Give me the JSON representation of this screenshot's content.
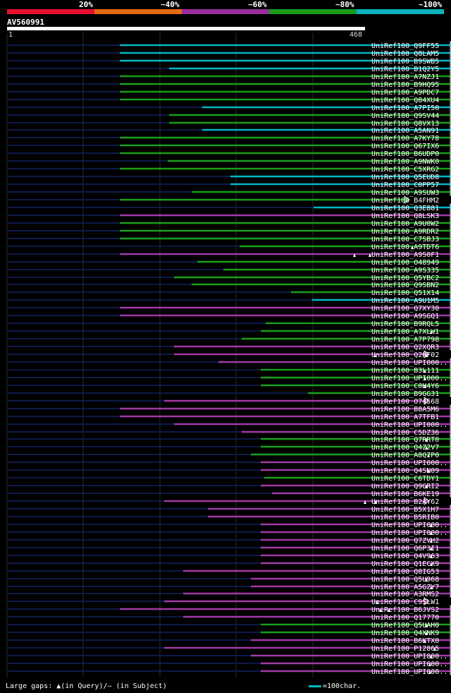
{
  "legend": {
    "colors": [
      "#e8102f",
      "#e46a12",
      "#9a2d9c",
      "#189c1a",
      "#0ab3bd"
    ],
    "labels": [
      "20%",
      "~40%",
      "~60%",
      "~80%",
      "~100%"
    ]
  },
  "query": {
    "name": "AV560991",
    "start": "1",
    "end": "468",
    "length": 468
  },
  "footer": {
    "gaps_text": "Large gaps: ▲(in Query)/— (in Subject)",
    "scale_text": "=100char."
  },
  "chart_data": {
    "type": "alignment-overview",
    "color_key": {
      "c": "#00b7c4",
      "g": "#1a9e1a",
      "m": "#a13aa6"
    },
    "hits": [
      {
        "name": "UniRef100_Q9FF55",
        "start": 170,
        "end": 645,
        "color": "c",
        "query_gaps": []
      },
      {
        "name": "UniRef100_Q8LAM5",
        "start": 170,
        "end": 645,
        "color": "c",
        "query_gaps": []
      },
      {
        "name": "UniRef100_B9SWB5",
        "start": 170,
        "end": 645,
        "color": "c",
        "query_gaps": []
      },
      {
        "name": "UniRef100_B1Q2Y5",
        "start": 240,
        "end": 645,
        "color": "c",
        "query_gaps": []
      },
      {
        "name": "UniRef100_A7NZJ1",
        "start": 170,
        "end": 645,
        "color": "g",
        "query_gaps": []
      },
      {
        "name": "UniRef100_B9HQ95",
        "start": 170,
        "end": 645,
        "color": "g",
        "query_gaps": []
      },
      {
        "name": "UniRef100_A9PDC7",
        "start": 170,
        "end": 645,
        "color": "g",
        "query_gaps": []
      },
      {
        "name": "UniRef100_Q84XU4",
        "start": 170,
        "end": 645,
        "color": "g",
        "query_gaps": []
      },
      {
        "name": "UniRef100_A7PI50",
        "start": 287,
        "end": 645,
        "color": "c",
        "query_gaps": []
      },
      {
        "name": "UniRef100_Q9SV44",
        "start": 240,
        "end": 645,
        "color": "g",
        "query_gaps": []
      },
      {
        "name": "UniRef100_Q8VX13",
        "start": 240,
        "end": 645,
        "color": "g",
        "query_gaps": []
      },
      {
        "name": "UniRef100_A5AN91",
        "start": 287,
        "end": 645,
        "color": "c",
        "query_gaps": []
      },
      {
        "name": "UniRef100_A7KY78",
        "start": 170,
        "end": 645,
        "color": "g",
        "query_gaps": []
      },
      {
        "name": "UniRef100_Q67IX6",
        "start": 170,
        "end": 645,
        "color": "g",
        "query_gaps": []
      },
      {
        "name": "UniRef100_B6UDP0",
        "start": 170,
        "end": 645,
        "color": "g",
        "query_gaps": []
      },
      {
        "name": "UniRef100_A9NWK0",
        "start": 238,
        "end": 645,
        "color": "g",
        "query_gaps": []
      },
      {
        "name": "UniRef100_C5XRG2",
        "start": 170,
        "end": 645,
        "color": "g",
        "query_gaps": []
      },
      {
        "name": "UniRef100_Q5EUD8",
        "start": 327,
        "end": 645,
        "color": "c",
        "query_gaps": []
      },
      {
        "name": "UniRef100_C0PP57",
        "start": 327,
        "end": 645,
        "color": "c",
        "query_gaps": []
      },
      {
        "name": "UniRef100_A9SUW3",
        "start": 272,
        "end": 645,
        "color": "g",
        "query_gaps": []
      },
      {
        "name": "UniRef100_B4FHM2",
        "start": 170,
        "end": 580,
        "color": "g",
        "query_gaps": []
      },
      {
        "name": "UniRef100_Q3E881",
        "start": 445,
        "end": 645,
        "color": "c",
        "query_gaps": []
      },
      {
        "name": "UniRef100_Q8LSK3",
        "start": 170,
        "end": 645,
        "color": "m",
        "query_gaps": []
      },
      {
        "name": "UniRef100_A9U0W2",
        "start": 170,
        "end": 645,
        "color": "g",
        "query_gaps": []
      },
      {
        "name": "UniRef100_A9RDR2",
        "start": 170,
        "end": 645,
        "color": "g",
        "query_gaps": []
      },
      {
        "name": "UniRef100_C7SBJ3",
        "start": 170,
        "end": 645,
        "color": "g",
        "query_gaps": []
      },
      {
        "name": "UniRef100_A9TDT6",
        "start": 340,
        "end": 645,
        "color": "g",
        "query_gaps": [
          585
        ]
      },
      {
        "name": "UniRef100_A9S0F1",
        "start": 170,
        "end": 645,
        "color": "m",
        "query_gaps": [
          503,
          525
        ]
      },
      {
        "name": "UniRef100_O48949",
        "start": 280,
        "end": 645,
        "color": "g",
        "query_gaps": []
      },
      {
        "name": "UniRef100_A9S335",
        "start": 317,
        "end": 645,
        "color": "g",
        "query_gaps": []
      },
      {
        "name": "UniRef100_Q5YBC2",
        "start": 247,
        "end": 645,
        "color": "g",
        "query_gaps": []
      },
      {
        "name": "UniRef100_Q9SBN2",
        "start": 272,
        "end": 645,
        "color": "g",
        "query_gaps": []
      },
      {
        "name": "UniRef100_Q51X14",
        "start": 413,
        "end": 645,
        "color": "g",
        "query_gaps": []
      },
      {
        "name": "UniRef100_A9U1M5",
        "start": 443,
        "end": 645,
        "color": "c",
        "query_gaps": []
      },
      {
        "name": "UniRef100_Q7XY30",
        "start": 170,
        "end": 645,
        "color": "m",
        "query_gaps": []
      },
      {
        "name": "UniRef100_A9SGQ1",
        "start": 170,
        "end": 645,
        "color": "m",
        "query_gaps": []
      },
      {
        "name": "UniRef100_B9RQL5",
        "start": 377,
        "end": 645,
        "color": "g",
        "query_gaps": []
      },
      {
        "name": "UniRef100_A7XLW1",
        "start": 370,
        "end": 645,
        "color": "g",
        "query_gaps": [
          612
        ]
      },
      {
        "name": "UniRef100_A7P798",
        "start": 343,
        "end": 645,
        "color": "g",
        "query_gaps": []
      },
      {
        "name": "UniRef100_Q2XQR3",
        "start": 247,
        "end": 645,
        "color": "m",
        "query_gaps": []
      },
      {
        "name": "UniRef100_Q2HF02",
        "start": 247,
        "end": 608,
        "color": "m",
        "query_gaps": [
          532,
          605
        ]
      },
      {
        "name": "UniRef100_UPI000..",
        "start": 310,
        "end": 645,
        "color": "m",
        "query_gaps": []
      },
      {
        "name": "UniRef100_B3L111",
        "start": 370,
        "end": 645,
        "color": "g",
        "query_gaps": [
          603
        ]
      },
      {
        "name": "UniRef100_UPI000..",
        "start": 370,
        "end": 645,
        "color": "g",
        "query_gaps": [
          603
        ]
      },
      {
        "name": "UniRef100_C0H4Y6",
        "start": 370,
        "end": 645,
        "color": "g",
        "query_gaps": [
          603
        ]
      },
      {
        "name": "UniRef100_B9GG31",
        "start": 437,
        "end": 645,
        "color": "g",
        "query_gaps": []
      },
      {
        "name": "UniRef100_O74568",
        "start": 233,
        "end": 608,
        "color": "m",
        "query_gaps": []
      },
      {
        "name": "UniRef100_B8A5M6",
        "start": 170,
        "end": 645,
        "color": "m",
        "query_gaps": []
      },
      {
        "name": "UniRef100_A7TFB1",
        "start": 170,
        "end": 645,
        "color": "m",
        "query_gaps": []
      },
      {
        "name": "UniRef100_UPI000..",
        "start": 247,
        "end": 645,
        "color": "m",
        "query_gaps": []
      },
      {
        "name": "UniRef100_C5DZ36",
        "start": 343,
        "end": 645,
        "color": "m",
        "query_gaps": []
      },
      {
        "name": "UniRef100_Q7RRT0",
        "start": 370,
        "end": 645,
        "color": "g",
        "query_gaps": [
          605
        ]
      },
      {
        "name": "UniRef100_Q4Z2V7",
        "start": 370,
        "end": 645,
        "color": "g",
        "query_gaps": [
          605
        ]
      },
      {
        "name": "UniRef100_A8Q7P0",
        "start": 356,
        "end": 645,
        "color": "g",
        "query_gaps": [
          608
        ]
      },
      {
        "name": "UniRef100_UPI000..",
        "start": 370,
        "end": 645,
        "color": "m",
        "query_gaps": []
      },
      {
        "name": "UniRef100_Q4SN09",
        "start": 370,
        "end": 645,
        "color": "m",
        "query_gaps": [
          608
        ]
      },
      {
        "name": "UniRef100_C6TDY1",
        "start": 375,
        "end": 645,
        "color": "g",
        "query_gaps": []
      },
      {
        "name": "UniRef100_Q9GRI2",
        "start": 370,
        "end": 645,
        "color": "m",
        "query_gaps": [
          605
        ]
      },
      {
        "name": "UniRef100_B6KE19",
        "start": 386,
        "end": 645,
        "color": "m",
        "query_gaps": []
      },
      {
        "name": "UniRef100_B2AY62",
        "start": 233,
        "end": 608,
        "color": "m",
        "query_gaps": [
          518,
          533
        ]
      },
      {
        "name": "UniRef100_B5X1H7",
        "start": 295,
        "end": 645,
        "color": "m",
        "query_gaps": []
      },
      {
        "name": "UniRef100_B5RIB0",
        "start": 295,
        "end": 645,
        "color": "m",
        "query_gaps": []
      },
      {
        "name": "UniRef100_UPI000..",
        "start": 370,
        "end": 645,
        "color": "m",
        "query_gaps": [
          612
        ]
      },
      {
        "name": "UniRef100_UPI000..",
        "start": 370,
        "end": 645,
        "color": "m",
        "query_gaps": [
          612
        ]
      },
      {
        "name": "UniRef100_Q7ZVH2",
        "start": 370,
        "end": 645,
        "color": "m",
        "query_gaps": [
          612
        ]
      },
      {
        "name": "UniRef100_Q6P3I1",
        "start": 370,
        "end": 645,
        "color": "m",
        "query_gaps": [
          612
        ]
      },
      {
        "name": "UniRef100_Q4V963",
        "start": 370,
        "end": 645,
        "color": "m",
        "query_gaps": [
          612
        ]
      },
      {
        "name": "UniRef100_Q1ECX9",
        "start": 370,
        "end": 645,
        "color": "m",
        "query_gaps": [
          612
        ]
      },
      {
        "name": "UniRef100_Q8IG53",
        "start": 260,
        "end": 645,
        "color": "m",
        "query_gaps": []
      },
      {
        "name": "UniRef100_Q5U968",
        "start": 356,
        "end": 645,
        "color": "m",
        "query_gaps": [
          605
        ]
      },
      {
        "name": "UniRef100_A5GZY7",
        "start": 356,
        "end": 645,
        "color": "m",
        "query_gaps": [
          612
        ]
      },
      {
        "name": "UniRef100_A3RMS2",
        "start": 260,
        "end": 645,
        "color": "m",
        "query_gaps": []
      },
      {
        "name": "UniRef100_C9SLW1",
        "start": 233,
        "end": 608,
        "color": "m",
        "query_gaps": [
          535
        ]
      },
      {
        "name": "UniRef100_B6JVS2",
        "start": 170,
        "end": 645,
        "color": "m",
        "query_gaps": [
          540,
          552
        ]
      },
      {
        "name": "UniRef100_Q17770",
        "start": 260,
        "end": 645,
        "color": "m",
        "query_gaps": []
      },
      {
        "name": "UniRef100_Q5UAH0",
        "start": 370,
        "end": 645,
        "color": "g",
        "query_gaps": [
          605
        ]
      },
      {
        "name": "UniRef100_Q4XNK9",
        "start": 370,
        "end": 645,
        "color": "g",
        "query_gaps": [
          605
        ]
      },
      {
        "name": "UniRef100_B6KTX0",
        "start": 356,
        "end": 645,
        "color": "m",
        "query_gaps": [
          603
        ]
      },
      {
        "name": "UniRef100_P12865",
        "start": 233,
        "end": 645,
        "color": "m",
        "query_gaps": [
          617
        ]
      },
      {
        "name": "UniRef100_UPI000..",
        "start": 356,
        "end": 645,
        "color": "m",
        "query_gaps": [
          612
        ]
      },
      {
        "name": "UniRef100_UPI000..",
        "start": 370,
        "end": 645,
        "color": "m",
        "query_gaps": [
          610
        ]
      },
      {
        "name": "UniRef100_UPI000..",
        "start": 370,
        "end": 645,
        "color": "m",
        "query_gaps": [
          610
        ]
      }
    ]
  }
}
